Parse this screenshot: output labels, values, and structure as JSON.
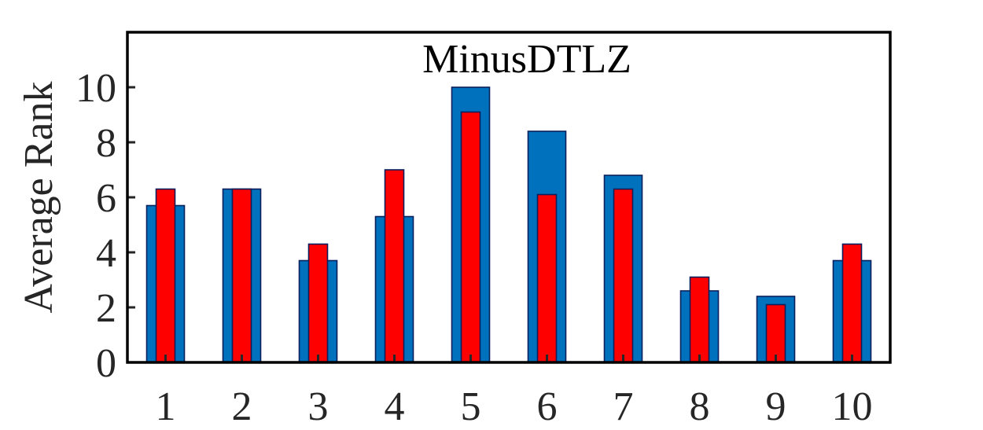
{
  "chart_data": {
    "type": "bar",
    "title": "MinusDTLZ",
    "xlabel": "",
    "ylabel": "Average Rank",
    "categories": [
      "1",
      "2",
      "3",
      "4",
      "5",
      "6",
      "7",
      "8",
      "9",
      "10"
    ],
    "series": [
      {
        "color": "#0072BD",
        "values": [
          5.7,
          6.3,
          3.7,
          5.3,
          10.0,
          8.4,
          6.8,
          2.6,
          2.4,
          3.7
        ]
      },
      {
        "color": "#FF0000",
        "values": [
          6.3,
          6.3,
          4.3,
          7.0,
          9.1,
          6.1,
          6.3,
          3.1,
          2.1,
          4.3
        ]
      }
    ],
    "ylim": [
      0,
      12
    ],
    "yticks": [
      0,
      2,
      4,
      6,
      8,
      10
    ],
    "grid": false,
    "legend": "none"
  }
}
